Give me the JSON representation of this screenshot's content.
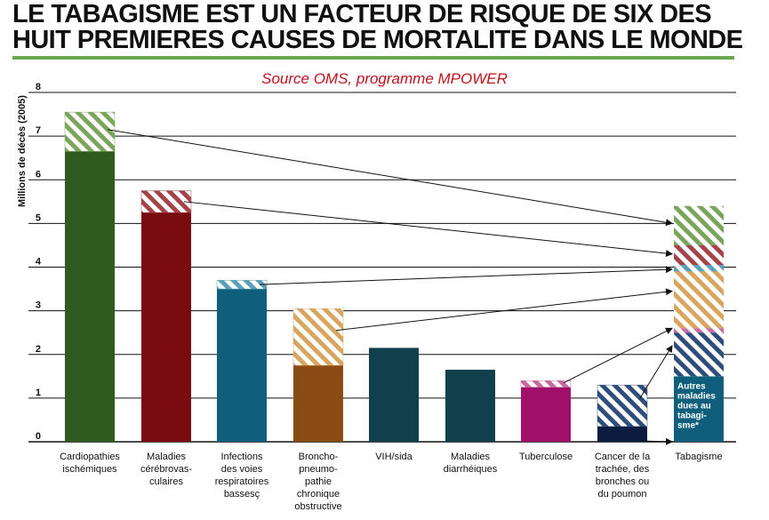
{
  "title_line1": "LE TABAGISME EST UN FACTEUR DE RISQUE DE SIX DES",
  "title_line2": "HUIT PREMIERES CAUSES DE MORTALITE DANS LE MONDE",
  "source": "Source OMS, programme MPOWER",
  "chart_data": {
    "type": "bar",
    "ylabel": "Millions de décès (2005)",
    "ylim": [
      0,
      8
    ],
    "yticks": [
      "0",
      "1",
      "2",
      "3",
      "4",
      "5",
      "6",
      "7",
      "8"
    ],
    "grid": true,
    "categories": [
      "Cardiopathies ischémiques",
      "Maladies cérébrovas-culaires",
      "Infections des voies respiratoires bassesç",
      "Broncho-pneumo-pathie chronique obstructive",
      "VIH/sida",
      "Maladies diarrhéiques",
      "Tuberculose",
      "Cancer de la trachée, des bronches ou du poumon",
      "Tabagisme"
    ],
    "category_lines": [
      [
        "Cardiopathies",
        "ischémiques"
      ],
      [
        "Maladies",
        "cérébrovas-",
        "culaires"
      ],
      [
        "Infections",
        "des voies",
        "respiratoires",
        "bassesç"
      ],
      [
        "Broncho-",
        "pneumo-",
        "pathie",
        "chronique",
        "obstructive"
      ],
      [
        "VIH/sida"
      ],
      [
        "Maladies",
        "diarrhéiques"
      ],
      [
        "Tuberculose"
      ],
      [
        "Cancer de la",
        "trachée, des",
        "bronches ou",
        "du poumon"
      ],
      [
        "Tabagisme"
      ]
    ],
    "bars": [
      {
        "solid": 6.65,
        "tobacco": 0.9,
        "color": "#2e5b1f",
        "hatch_color": "#7aa55a"
      },
      {
        "solid": 5.25,
        "tobacco": 0.5,
        "color": "#7a0c11",
        "hatch_color": "#a3444b"
      },
      {
        "solid": 3.5,
        "tobacco": 0.2,
        "color": "#0f5f7c",
        "hatch_color": "#5aa0b8"
      },
      {
        "solid": 1.75,
        "tobacco": 1.3,
        "color": "#8a4c14",
        "hatch_color": "#d8a660"
      },
      {
        "solid": 2.15,
        "tobacco": 0,
        "color": "#10404c",
        "hatch_color": ""
      },
      {
        "solid": 1.65,
        "tobacco": 0,
        "color": "#10404c",
        "hatch_color": ""
      },
      {
        "solid": 1.25,
        "tobacco": 0.15,
        "color": "#a0106a",
        "hatch_color": "#c76aa2"
      },
      {
        "solid": 0.35,
        "tobacco": 0.95,
        "color": "#0c1b40",
        "hatch_color": "#2f4d7a"
      }
    ],
    "tabagisme_bar": {
      "segments": [
        {
          "from": 0,
          "to": 1.5,
          "color": "#0f5f7c",
          "hatched": false
        },
        {
          "from": 1.5,
          "to": 2.5,
          "color": "#2f4d7a",
          "hatched": true
        },
        {
          "from": 2.5,
          "to": 2.6,
          "color": "#c76aa2",
          "hatched": true
        },
        {
          "from": 2.6,
          "to": 3.9,
          "color": "#d8a660",
          "hatched": true
        },
        {
          "from": 3.9,
          "to": 4.05,
          "color": "#5aa0b8",
          "hatched": true
        },
        {
          "from": 4.05,
          "to": 4.5,
          "color": "#a3444b",
          "hatched": true
        },
        {
          "from": 4.5,
          "to": 5.4,
          "color": "#7aa55a",
          "hatched": true
        }
      ],
      "annotation_lines": [
        "Autres",
        "maladies",
        "dues au",
        "tabagi-",
        "sme*"
      ]
    },
    "arrows": [
      {
        "from_bar": 0,
        "from_y": 7.15,
        "to_y": 5.0
      },
      {
        "from_bar": 1,
        "from_y": 5.5,
        "to_y": 4.3
      },
      {
        "from_bar": 2,
        "from_y": 3.6,
        "to_y": 3.95
      },
      {
        "from_bar": 3,
        "from_y": 2.55,
        "to_y": 3.45
      },
      {
        "from_bar": 6,
        "from_y": 1.35,
        "to_y": 2.6
      },
      {
        "from_bar": 7,
        "from_y": 1.0,
        "to_y": 2.2
      },
      {
        "from_bar": 7,
        "from_y": 0.02,
        "to_y": 0.0
      }
    ]
  }
}
